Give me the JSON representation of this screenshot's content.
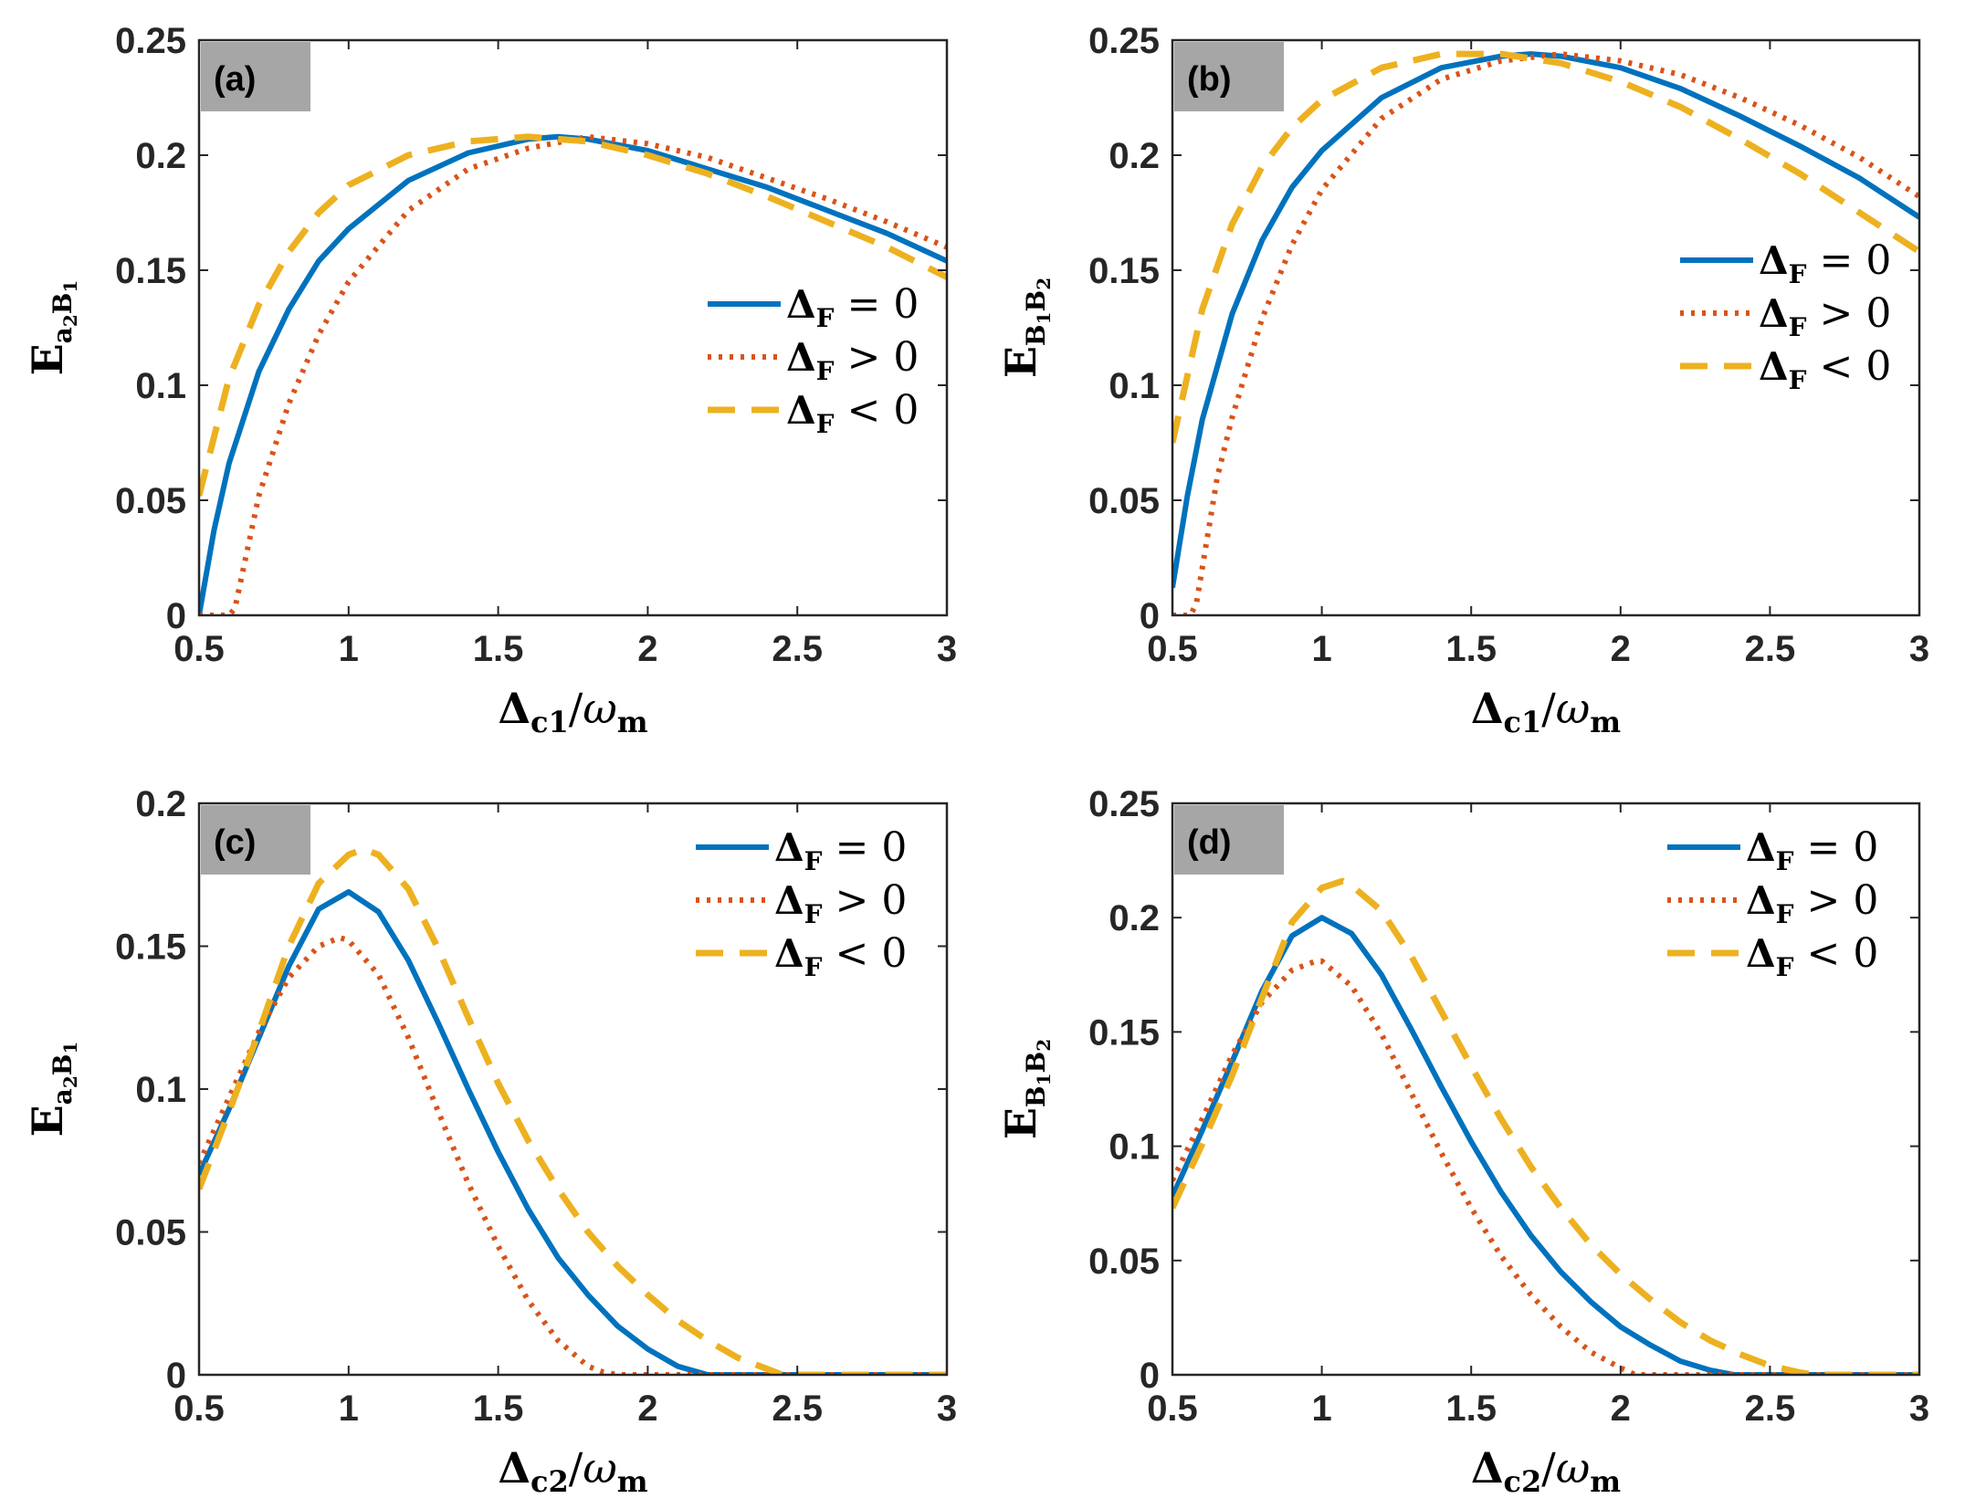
{
  "chart_data": [
    {
      "type": "line",
      "panel_label": "(a)",
      "ylabel": {
        "main": "E",
        "sub1": "a",
        "sub2": "2",
        "sub3": "B",
        "sub4": "1"
      },
      "xlabel": {
        "delta": "Δ",
        "sub": "c1",
        "omega": "ω",
        "omega_sub": "m"
      },
      "xlim": [
        0.5,
        3
      ],
      "ylim": [
        0,
        0.25
      ],
      "xticks": [
        "0.5",
        "1",
        "1.5",
        "2",
        "2.5",
        "3"
      ],
      "yticks": [
        "0",
        "0.05",
        "0.1",
        "0.15",
        "0.2",
        "0.25"
      ],
      "legend_position": "center-right",
      "series": [
        {
          "name": "ΔF = 0",
          "label_rel": "= 0",
          "color": "#0072BD",
          "dash": "solid",
          "x": [
            0.5,
            0.55,
            0.6,
            0.7,
            0.8,
            0.9,
            1.0,
            1.2,
            1.4,
            1.6,
            1.7,
            1.8,
            2.0,
            2.2,
            2.4,
            2.6,
            2.8,
            3.0
          ],
          "y": [
            0.0,
            0.037,
            0.066,
            0.106,
            0.133,
            0.154,
            0.168,
            0.189,
            0.201,
            0.207,
            0.208,
            0.207,
            0.202,
            0.194,
            0.186,
            0.176,
            0.166,
            0.154
          ]
        },
        {
          "name": "ΔF > 0",
          "label_rel": "> 0",
          "color": "#D95319",
          "dash": "dotted",
          "x": [
            0.5,
            0.6,
            0.62,
            0.7,
            0.8,
            0.9,
            1.0,
            1.2,
            1.4,
            1.6,
            1.8,
            2.0,
            2.2,
            2.4,
            2.6,
            2.8,
            3.0
          ],
          "y": [
            0.0,
            0.0,
            0.003,
            0.052,
            0.092,
            0.122,
            0.145,
            0.176,
            0.194,
            0.203,
            0.208,
            0.205,
            0.199,
            0.19,
            0.181,
            0.171,
            0.16
          ]
        },
        {
          "name": "ΔF < 0",
          "label_rel": "< 0",
          "color": "#EDB120",
          "dash": "dashed",
          "x": [
            0.5,
            0.6,
            0.7,
            0.8,
            0.9,
            1.0,
            1.2,
            1.4,
            1.6,
            1.8,
            2.0,
            2.2,
            2.4,
            2.6,
            2.8,
            3.0
          ],
          "y": [
            0.052,
            0.103,
            0.135,
            0.158,
            0.175,
            0.187,
            0.2,
            0.206,
            0.208,
            0.206,
            0.2,
            0.192,
            0.182,
            0.171,
            0.16,
            0.147
          ]
        }
      ]
    },
    {
      "type": "line",
      "panel_label": "(b)",
      "ylabel": {
        "main": "E",
        "sub1": "B",
        "sub2": "1",
        "sub3": "B",
        "sub4": "2"
      },
      "xlabel": {
        "delta": "Δ",
        "sub": "c1",
        "omega": "ω",
        "omega_sub": "m"
      },
      "xlim": [
        0.5,
        3
      ],
      "ylim": [
        0,
        0.25
      ],
      "xticks": [
        "0.5",
        "1",
        "1.5",
        "2",
        "2.5",
        "3"
      ],
      "yticks": [
        "0",
        "0.05",
        "0.1",
        "0.15",
        "0.2",
        "0.25"
      ],
      "legend_position": "upper-right",
      "series": [
        {
          "name": "ΔF = 0",
          "label_rel": "= 0",
          "color": "#0072BD",
          "dash": "solid",
          "x": [
            0.5,
            0.55,
            0.6,
            0.7,
            0.8,
            0.9,
            1.0,
            1.2,
            1.4,
            1.6,
            1.7,
            1.8,
            2.0,
            2.2,
            2.4,
            2.6,
            2.8,
            3.0
          ],
          "y": [
            0.012,
            0.052,
            0.085,
            0.131,
            0.163,
            0.186,
            0.202,
            0.225,
            0.238,
            0.243,
            0.244,
            0.243,
            0.238,
            0.229,
            0.217,
            0.204,
            0.19,
            0.173
          ]
        },
        {
          "name": "ΔF > 0",
          "label_rel": "> 0",
          "color": "#D95319",
          "dash": "dotted",
          "x": [
            0.5,
            0.56,
            0.58,
            0.65,
            0.7,
            0.8,
            0.9,
            1.0,
            1.2,
            1.4,
            1.6,
            1.8,
            2.0,
            2.2,
            2.4,
            2.6,
            2.8,
            3.0
          ],
          "y": [
            0.0,
            0.0,
            0.005,
            0.06,
            0.086,
            0.129,
            0.161,
            0.185,
            0.216,
            0.233,
            0.241,
            0.244,
            0.241,
            0.235,
            0.225,
            0.213,
            0.199,
            0.182
          ]
        },
        {
          "name": "ΔF < 0",
          "label_rel": "< 0",
          "color": "#EDB120",
          "dash": "dashed",
          "x": [
            0.5,
            0.6,
            0.7,
            0.8,
            0.9,
            1.0,
            1.2,
            1.4,
            1.6,
            1.8,
            2.0,
            2.2,
            2.4,
            2.6,
            2.8,
            3.0
          ],
          "y": [
            0.075,
            0.133,
            0.17,
            0.195,
            0.212,
            0.224,
            0.238,
            0.244,
            0.244,
            0.24,
            0.232,
            0.221,
            0.207,
            0.192,
            0.175,
            0.158
          ]
        }
      ]
    },
    {
      "type": "line",
      "panel_label": "(c)",
      "ylabel": {
        "main": "E",
        "sub1": "a",
        "sub2": "2",
        "sub3": "B",
        "sub4": "1"
      },
      "xlabel": {
        "delta": "Δ",
        "sub": "c2",
        "omega": "ω",
        "omega_sub": "m"
      },
      "xlim": [
        0.5,
        3
      ],
      "ylim": [
        0,
        0.2
      ],
      "xticks": [
        "0.5",
        "1",
        "1.5",
        "2",
        "2.5",
        "3"
      ],
      "yticks": [
        "0",
        "0.05",
        "0.1",
        "0.15",
        "0.2"
      ],
      "legend_position": "upper-right",
      "series": [
        {
          "name": "ΔF = 0",
          "label_rel": "= 0",
          "color": "#0072BD",
          "dash": "solid",
          "x": [
            0.5,
            0.6,
            0.7,
            0.8,
            0.9,
            1.0,
            1.1,
            1.2,
            1.3,
            1.4,
            1.5,
            1.6,
            1.7,
            1.8,
            1.9,
            2.0,
            2.1,
            2.2,
            2.25,
            3.0
          ],
          "y": [
            0.07,
            0.093,
            0.118,
            0.143,
            0.163,
            0.169,
            0.162,
            0.145,
            0.123,
            0.1,
            0.078,
            0.058,
            0.041,
            0.028,
            0.017,
            0.009,
            0.003,
            0.0,
            0.0,
            0.0
          ]
        },
        {
          "name": "ΔF > 0",
          "label_rel": "> 0",
          "color": "#D95319",
          "dash": "dotted",
          "x": [
            0.5,
            0.6,
            0.7,
            0.8,
            0.9,
            0.97,
            1.0,
            1.1,
            1.2,
            1.3,
            1.4,
            1.5,
            1.6,
            1.7,
            1.8,
            1.85,
            1.9,
            3.0
          ],
          "y": [
            0.074,
            0.097,
            0.12,
            0.139,
            0.15,
            0.153,
            0.152,
            0.14,
            0.118,
            0.092,
            0.067,
            0.045,
            0.026,
            0.012,
            0.003,
            0.001,
            0.0,
            0.0
          ]
        },
        {
          "name": "ΔF < 0",
          "label_rel": "< 0",
          "color": "#EDB120",
          "dash": "dashed",
          "x": [
            0.5,
            0.6,
            0.7,
            0.8,
            0.9,
            1.0,
            1.05,
            1.1,
            1.2,
            1.3,
            1.4,
            1.5,
            1.6,
            1.7,
            1.8,
            1.9,
            2.0,
            2.1,
            2.2,
            2.3,
            2.4,
            2.45,
            3.0
          ],
          "y": [
            0.065,
            0.092,
            0.12,
            0.15,
            0.172,
            0.182,
            0.184,
            0.182,
            0.17,
            0.149,
            0.125,
            0.102,
            0.082,
            0.065,
            0.05,
            0.038,
            0.028,
            0.019,
            0.012,
            0.006,
            0.002,
            0.0,
            0.0
          ]
        }
      ]
    },
    {
      "type": "line",
      "panel_label": "(d)",
      "ylabel": {
        "main": "E",
        "sub1": "B",
        "sub2": "1",
        "sub3": "B",
        "sub4": "2"
      },
      "xlabel": {
        "delta": "Δ",
        "sub": "c2",
        "omega": "ω",
        "omega_sub": "m"
      },
      "xlim": [
        0.5,
        3
      ],
      "ylim": [
        0,
        0.25
      ],
      "xticks": [
        "0.5",
        "1",
        "1.5",
        "2",
        "2.5",
        "3"
      ],
      "yticks": [
        "0",
        "0.05",
        "0.1",
        "0.15",
        "0.2",
        "0.25"
      ],
      "legend_position": "upper-right",
      "series": [
        {
          "name": "ΔF = 0",
          "label_rel": "= 0",
          "color": "#0072BD",
          "dash": "solid",
          "x": [
            0.5,
            0.6,
            0.7,
            0.8,
            0.9,
            1.0,
            1.1,
            1.2,
            1.3,
            1.4,
            1.5,
            1.6,
            1.7,
            1.8,
            1.9,
            2.0,
            2.1,
            2.2,
            2.3,
            2.38,
            3.0
          ],
          "y": [
            0.078,
            0.107,
            0.137,
            0.168,
            0.192,
            0.2,
            0.193,
            0.175,
            0.151,
            0.126,
            0.102,
            0.08,
            0.061,
            0.045,
            0.032,
            0.021,
            0.013,
            0.006,
            0.002,
            0.0,
            0.0
          ]
        },
        {
          "name": "ΔF > 0",
          "label_rel": "> 0",
          "color": "#D95319",
          "dash": "dotted",
          "x": [
            0.5,
            0.6,
            0.7,
            0.8,
            0.9,
            0.98,
            1.0,
            1.1,
            1.2,
            1.3,
            1.4,
            1.5,
            1.6,
            1.7,
            1.8,
            1.9,
            2.0,
            2.05,
            3.0
          ],
          "y": [
            0.085,
            0.112,
            0.14,
            0.163,
            0.177,
            0.181,
            0.181,
            0.17,
            0.149,
            0.123,
            0.097,
            0.073,
            0.052,
            0.035,
            0.021,
            0.01,
            0.003,
            0.0,
            0.0
          ]
        },
        {
          "name": "ΔF < 0",
          "label_rel": "< 0",
          "color": "#EDB120",
          "dash": "dashed",
          "x": [
            0.5,
            0.6,
            0.7,
            0.8,
            0.9,
            1.0,
            1.07,
            1.1,
            1.2,
            1.3,
            1.4,
            1.5,
            1.6,
            1.7,
            1.8,
            1.9,
            2.0,
            2.1,
            2.2,
            2.3,
            2.4,
            2.5,
            2.6,
            2.65,
            3.0
          ],
          "y": [
            0.073,
            0.101,
            0.131,
            0.165,
            0.198,
            0.213,
            0.216,
            0.214,
            0.203,
            0.183,
            0.159,
            0.135,
            0.112,
            0.091,
            0.073,
            0.057,
            0.044,
            0.033,
            0.023,
            0.015,
            0.009,
            0.004,
            0.001,
            0.0,
            0.0
          ]
        }
      ]
    }
  ]
}
